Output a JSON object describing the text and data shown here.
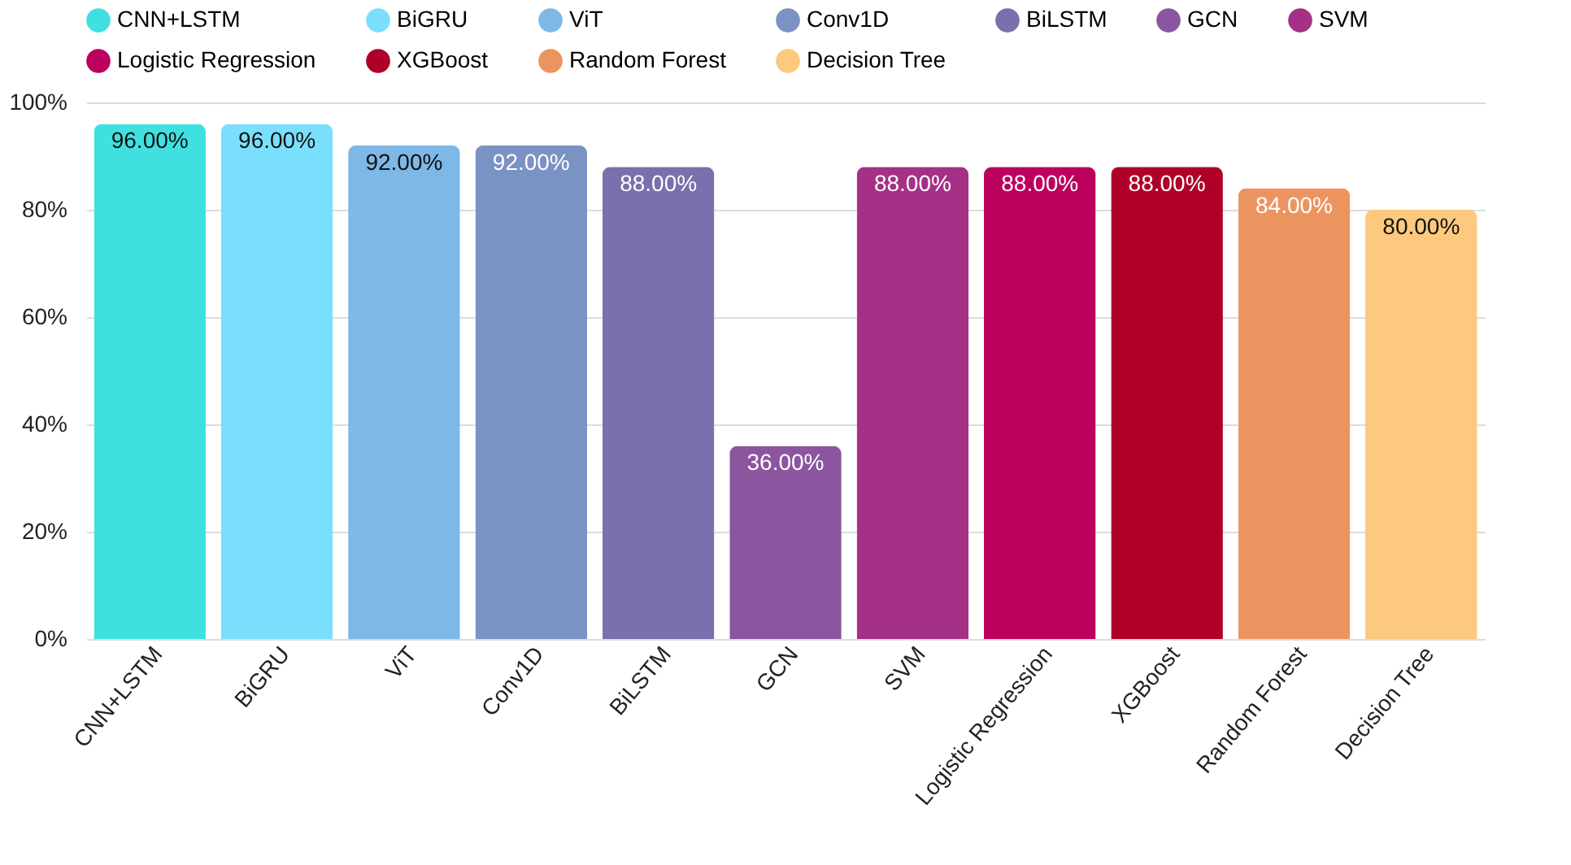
{
  "chart_data": {
    "type": "bar",
    "categories": [
      "CNN+LSTM",
      "BiGRU",
      "ViT",
      "Conv1D",
      "BiLSTM",
      "GCN",
      "SVM",
      "Logistic Regression",
      "XGBoost",
      "Random Forest",
      "Decision Tree"
    ],
    "series": [
      {
        "name": "CNN+LSTM",
        "color": "#40e0e0",
        "values": [
          96,
          null,
          null,
          null,
          null,
          null,
          null,
          null,
          null,
          null,
          null
        ],
        "value_labels": [
          "96.00%",
          null,
          null,
          null,
          null,
          null,
          null,
          null,
          null,
          null,
          null
        ]
      },
      {
        "name": "BiGRU",
        "color": "#7adffc",
        "values": [
          null,
          96,
          null,
          null,
          null,
          null,
          null,
          null,
          null,
          null,
          null
        ],
        "value_labels": [
          null,
          "96.00%",
          null,
          null,
          null,
          null,
          null,
          null,
          null,
          null,
          null
        ]
      },
      {
        "name": "ViT",
        "color": "#7eb8e6",
        "values": [
          null,
          null,
          92,
          null,
          null,
          null,
          null,
          null,
          null,
          null,
          null
        ],
        "value_labels": [
          null,
          null,
          "92.00%",
          null,
          null,
          null,
          null,
          null,
          null,
          null,
          null
        ]
      },
      {
        "name": "Conv1D",
        "color": "#7b92c4",
        "values": [
          null,
          null,
          null,
          92,
          null,
          null,
          null,
          null,
          null,
          null,
          null
        ],
        "value_labels": [
          null,
          null,
          null,
          "92.00%",
          null,
          null,
          null,
          null,
          null,
          null,
          null
        ]
      },
      {
        "name": "BiLSTM",
        "color": "#7a70ac",
        "values": [
          null,
          null,
          null,
          null,
          88,
          null,
          null,
          null,
          null,
          null,
          null
        ],
        "value_labels": [
          null,
          null,
          null,
          null,
          "88.00%",
          null,
          null,
          null,
          null,
          null,
          null
        ]
      },
      {
        "name": "GCN",
        "color": "#8b55a0",
        "values": [
          null,
          null,
          null,
          null,
          null,
          36,
          null,
          null,
          null,
          null,
          null
        ],
        "value_labels": [
          null,
          null,
          null,
          null,
          null,
          "36.00%",
          null,
          null,
          null,
          null,
          null
        ]
      },
      {
        "name": "SVM",
        "color": "#a53187",
        "values": [
          null,
          null,
          null,
          null,
          null,
          null,
          88,
          null,
          null,
          null,
          null
        ],
        "value_labels": [
          null,
          null,
          null,
          null,
          null,
          null,
          "88.00%",
          null,
          null,
          null,
          null
        ]
      },
      {
        "name": "Logistic Regression",
        "color": "#bb005e",
        "values": [
          null,
          null,
          null,
          null,
          null,
          null,
          null,
          88,
          null,
          null,
          null
        ],
        "value_labels": [
          null,
          null,
          null,
          null,
          null,
          null,
          null,
          "88.00%",
          null,
          null,
          null
        ]
      },
      {
        "name": "XGBoost",
        "color": "#b00029",
        "values": [
          null,
          null,
          null,
          null,
          null,
          null,
          null,
          null,
          88,
          null,
          null
        ],
        "value_labels": [
          null,
          null,
          null,
          null,
          null,
          null,
          null,
          null,
          "88.00%",
          null,
          null
        ]
      },
      {
        "name": "Random Forest",
        "color": "#ec9460",
        "values": [
          null,
          null,
          null,
          null,
          null,
          null,
          null,
          null,
          null,
          84,
          null
        ],
        "value_labels": [
          null,
          null,
          null,
          null,
          null,
          null,
          null,
          null,
          null,
          "84.00%",
          null
        ]
      },
      {
        "name": "Decision Tree",
        "color": "#fdc97e",
        "values": [
          null,
          null,
          null,
          null,
          null,
          null,
          null,
          null,
          null,
          null,
          80
        ],
        "value_labels": [
          null,
          null,
          null,
          null,
          null,
          null,
          null,
          null,
          null,
          null,
          "80.00%"
        ]
      }
    ],
    "ylim": [
      0,
      100
    ],
    "yticks": [
      {
        "value": 0,
        "label": "0%"
      },
      {
        "value": 20,
        "label": "20%"
      },
      {
        "value": 40,
        "label": "40%"
      },
      {
        "value": 60,
        "label": "60%"
      },
      {
        "value": 80,
        "label": "80%"
      },
      {
        "value": 100,
        "label": "100%"
      }
    ],
    "grid": "y",
    "legend": "top"
  }
}
